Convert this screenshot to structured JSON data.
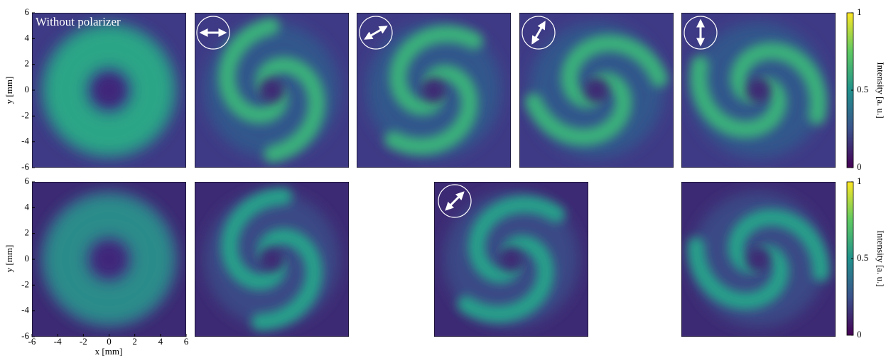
{
  "chart_data": {
    "type": "image-grid",
    "annotation": "Without polarizer",
    "xlabel": "x [mm]",
    "ylabel": "y [mm]",
    "xlim": [
      -6,
      6
    ],
    "ylim": [
      -6,
      6
    ],
    "xticks": [
      -6,
      -4,
      -2,
      0,
      2,
      4,
      6
    ],
    "yticks": [
      -6,
      -4,
      -2,
      0,
      2,
      4,
      6
    ],
    "colorbar": {
      "label": "Intensity [a. u.]",
      "lim": [
        0,
        1
      ],
      "ticks": [
        0,
        0.5,
        1
      ]
    }
  }
}
